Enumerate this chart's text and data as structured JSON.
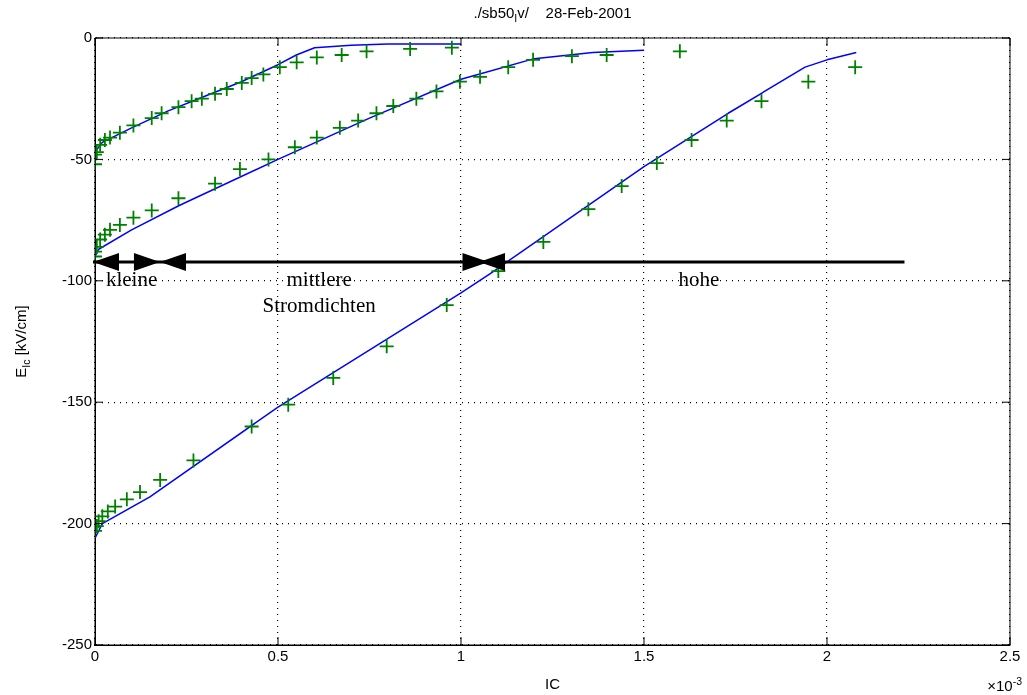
{
  "chart_data": {
    "type": "scatter",
    "title": "./sb50$_{I}$v/    28-Feb-2001",
    "xlabel": "IC",
    "ylabel": "E$_{Ic}$ [kV/cm]",
    "xlim": [
      0,
      2.5
    ],
    "xticks": [
      0,
      0.5,
      1,
      1.5,
      2,
      2.5
    ],
    "ylim": [
      -250,
      0
    ],
    "yticks": [
      -250,
      -200,
      -150,
      -100,
      -50,
      0
    ],
    "grid": true,
    "legend": false,
    "marker": "cross",
    "annotations": [
      "×10$^{-3}$",
      "kleine",
      "mittlere\nStromdichten",
      "hohe"
    ],
    "series": [
      {
        "type": "line",
        "color": "#0000ff",
        "marker": "none",
        "x": [
          0,
          0.02,
          0.1,
          0.2,
          0.3,
          0.4,
          0.5,
          0.55,
          0.6,
          0.7,
          0.8,
          1.0
        ],
        "values": [
          -47,
          -43,
          -37,
          -30,
          -24,
          -18,
          -11,
          -7,
          -4,
          -3,
          -2.5,
          -2.5
        ]
      },
      {
        "type": "line",
        "color": "#0000ff",
        "marker": "none",
        "x": [
          0,
          0.01,
          0.1,
          0.23,
          0.5,
          0.75,
          1.0,
          1.2,
          1.36,
          1.5
        ],
        "values": [
          -90,
          -87,
          -79,
          -69,
          -50,
          -33,
          -17,
          -8.5,
          -6,
          -5
        ]
      },
      {
        "type": "line",
        "color": "#0000ff",
        "marker": "none",
        "x": [
          0,
          0.02,
          0.15,
          0.5,
          1.0,
          1.08,
          1.5,
          1.73,
          1.94,
          2.0,
          2.08
        ],
        "values": [
          -206,
          -200,
          -189,
          -152,
          -105,
          -97,
          -53,
          -31,
          -12,
          -9,
          -6
        ]
      },
      {
        "color": "#008000",
        "x": [
          0,
          0,
          0.005,
          0.014,
          0.027,
          0.041,
          0.068,
          0.105,
          0.155,
          0.182,
          0.228,
          0.264,
          0.292,
          0.328,
          0.36,
          0.401,
          0.428,
          0.46,
          0.505,
          0.551,
          0.606,
          0.674,
          0.742,
          0.861,
          0.975
        ],
        "values": [
          -52,
          -48,
          -47,
          -44,
          -42,
          -41,
          -39,
          -36,
          -33,
          -31,
          -28.5,
          -26,
          -25,
          -23,
          -21,
          -18.5,
          -16.5,
          -15,
          -12,
          -10,
          -8,
          -7,
          -5.5,
          -4.5,
          -4
        ]
      },
      {
        "color": "#008000",
        "x": [
          0,
          0,
          0.005,
          0.014,
          0.027,
          0.041,
          0.068,
          0.105,
          0.155,
          0.228,
          0.328,
          0.396,
          0.474,
          0.546,
          0.606,
          0.669,
          0.719,
          0.769,
          0.815,
          0.878,
          0.933,
          0.997,
          1.052,
          1.129,
          1.197,
          1.303,
          1.398,
          1.598
        ],
        "values": [
          -90,
          -88,
          -86,
          -83,
          -81,
          -79,
          -77,
          -74,
          -71,
          -66,
          -60,
          -54,
          -50,
          -45,
          -41,
          -37,
          -34,
          -31,
          -28,
          -25,
          -22,
          -18,
          -16,
          -12,
          -9,
          -7.5,
          -7,
          -5.5
        ]
      },
      {
        "color": "#008000",
        "x": [
          0,
          0.005,
          0.01,
          0.02,
          0.035,
          0.055,
          0.087,
          0.123,
          0.178,
          0.269,
          0.428,
          0.528,
          0.651,
          0.797,
          0.961,
          1.102,
          1.225,
          1.348,
          1.439,
          1.535,
          1.63,
          1.726,
          1.821,
          1.949,
          2.077
        ],
        "values": [
          -203,
          -201,
          -199,
          -197,
          -195,
          -193,
          -190,
          -187,
          -182,
          -174,
          -160,
          -151,
          -140,
          -127,
          -110,
          -96,
          -84,
          -70.5,
          -61,
          -51.5,
          -42,
          -34,
          -26,
          -18,
          -12
        ]
      }
    ]
  }
}
